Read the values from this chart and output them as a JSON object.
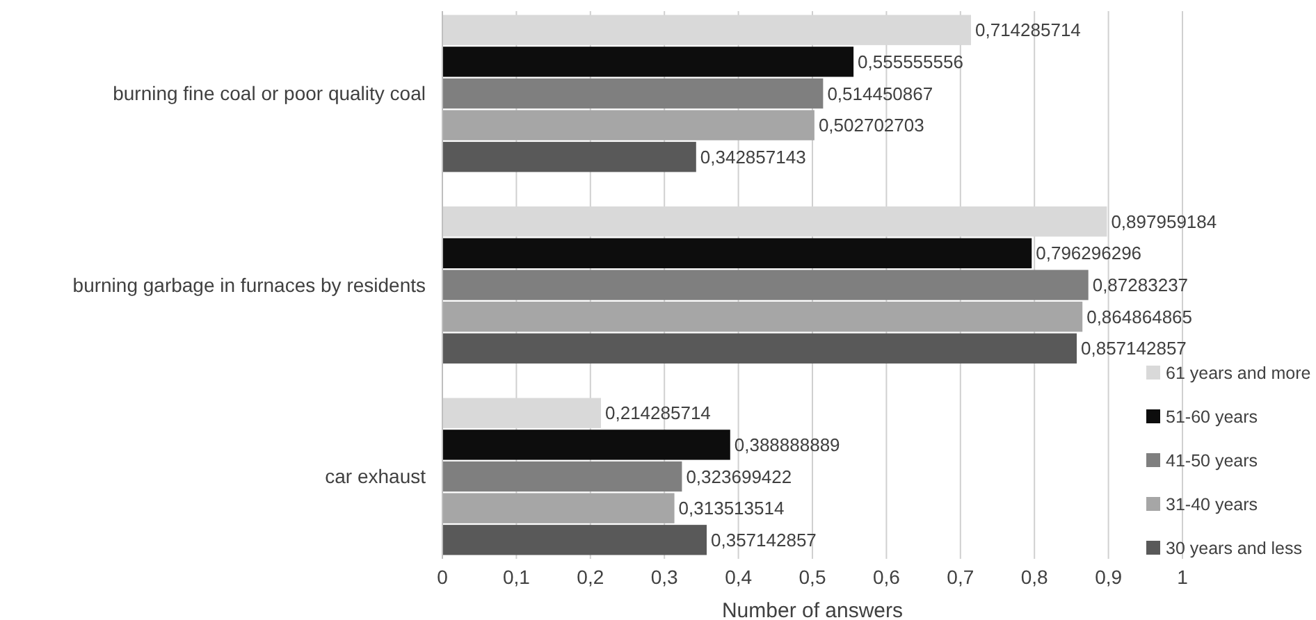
{
  "chart_data": {
    "type": "bar",
    "orientation": "horizontal",
    "xlabel": "Number of answers",
    "categories": [
      "burning fine coal or poor quality coal",
      "burning garbage in furnaces by residents",
      "car exhaust"
    ],
    "series": [
      {
        "name": "61 years and more",
        "color": "#d9d9d9",
        "values": [
          0.714285714,
          0.897959184,
          0.214285714
        ],
        "value_labels": [
          "0,714285714",
          "0,897959184",
          "0,214285714"
        ]
      },
      {
        "name": "51-60 years",
        "color": "#0d0d0d",
        "values": [
          0.555555556,
          0.796296296,
          0.388888889
        ],
        "value_labels": [
          "0,555555556",
          "0,796296296",
          "0,388888889"
        ]
      },
      {
        "name": "41-50 years",
        "color": "#7f7f7f",
        "values": [
          0.514450867,
          0.87283237,
          0.323699422
        ],
        "value_labels": [
          "0,514450867",
          "0,87283237",
          "0,323699422"
        ]
      },
      {
        "name": "31-40 years",
        "color": "#a6a6a6",
        "values": [
          0.502702703,
          0.864864865,
          0.313513514
        ],
        "value_labels": [
          "0,502702703",
          "0,864864865",
          "0,313513514"
        ]
      },
      {
        "name": "30 years and less",
        "color": "#595959",
        "values": [
          0.342857143,
          0.857142857,
          0.357142857
        ],
        "value_labels": [
          "0,342857143",
          "0,857142857",
          "0,357142857"
        ]
      }
    ],
    "xlim": [
      0,
      1
    ],
    "xticks": [
      0,
      {
        "value": 0.1,
        "label": "0,1"
      },
      {
        "value": 0.2,
        "label": "0,2"
      },
      {
        "value": 0.3,
        "label": "0,3"
      },
      {
        "value": 0.4,
        "label": "0,4"
      },
      {
        "value": 0.5,
        "label": "0,5"
      },
      {
        "value": 0.6,
        "label": "0,6"
      },
      {
        "value": 0.7,
        "label": "0,7"
      },
      {
        "value": 0.8,
        "label": "0,8"
      },
      {
        "value": 0.9,
        "label": "0,9"
      },
      1
    ],
    "grid": "x",
    "legend": "bottom right"
  }
}
